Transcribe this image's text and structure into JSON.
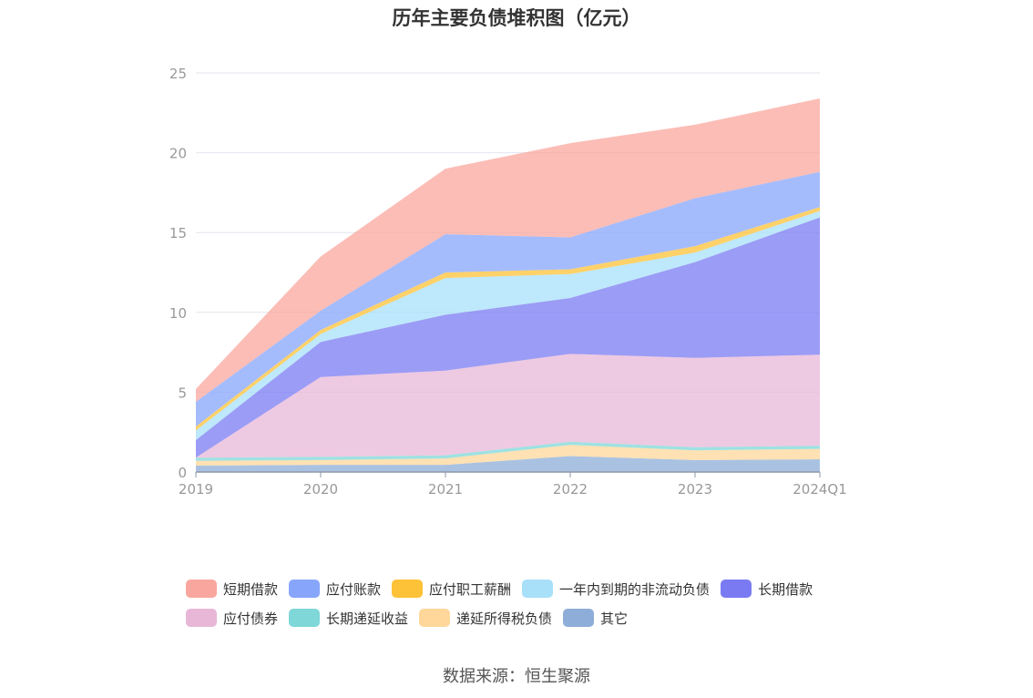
{
  "chart_data": {
    "type": "area",
    "stacked": true,
    "title": "历年主要负债堆积图（亿元）",
    "categories": [
      "2019",
      "2020",
      "2021",
      "2022",
      "2023",
      "2024Q1"
    ],
    "ylim": [
      0,
      25
    ],
    "yticks": [
      "0",
      "5",
      "10",
      "15",
      "20",
      "25"
    ],
    "grid": true,
    "legend_position": "bottom",
    "series": [
      {
        "name": "其它",
        "color": "#8eadd8",
        "values": [
          0.4,
          0.45,
          0.45,
          1.0,
          0.75,
          0.8
        ]
      },
      {
        "name": "递延所得税负债",
        "color": "#ffd79a",
        "values": [
          0.3,
          0.3,
          0.4,
          0.7,
          0.6,
          0.65
        ]
      },
      {
        "name": "长期递延收益",
        "color": "#7fd7d8",
        "values": [
          0.2,
          0.2,
          0.2,
          0.2,
          0.2,
          0.2
        ]
      },
      {
        "name": "应付债券",
        "color": "#e8b7d8",
        "values": [
          0.0,
          5.0,
          5.3,
          5.5,
          5.6,
          5.7
        ]
      },
      {
        "name": "长期借款",
        "color": "#7a7bf2",
        "values": [
          1.1,
          2.2,
          3.5,
          3.5,
          6.0,
          8.6
        ]
      },
      {
        "name": "一年内到期的非流动负债",
        "color": "#a8e0fa",
        "values": [
          0.6,
          0.5,
          2.3,
          1.5,
          0.6,
          0.4
        ]
      },
      {
        "name": "应付职工薪酬",
        "color": "#fdc237",
        "values": [
          0.25,
          0.25,
          0.35,
          0.3,
          0.4,
          0.25
        ]
      },
      {
        "name": "应付账款",
        "color": "#87a6fb",
        "values": [
          1.55,
          1.2,
          2.4,
          2.0,
          3.0,
          2.2
        ]
      },
      {
        "name": "短期借款",
        "color": "#f9a79e",
        "values": [
          0.8,
          3.4,
          4.1,
          5.9,
          4.6,
          4.6
        ]
      }
    ]
  },
  "legend_rows": [
    [
      {
        "name": "短期借款",
        "color": "#f9a79e"
      },
      {
        "name": "应付账款",
        "color": "#87a6fb"
      },
      {
        "name": "应付职工薪酬",
        "color": "#fdc237"
      },
      {
        "name": "一年内到期的非流动负债",
        "color": "#a8e0fa"
      },
      {
        "name": "长期借款",
        "color": "#7a7bf2"
      }
    ],
    [
      {
        "name": "应付债券",
        "color": "#e8b7d8"
      },
      {
        "name": "长期递延收益",
        "color": "#7fd7d8"
      },
      {
        "name": "递延所得税负债",
        "color": "#ffd79a"
      },
      {
        "name": "其它",
        "color": "#8eadd8"
      }
    ]
  ],
  "source": "数据来源：恒生聚源"
}
